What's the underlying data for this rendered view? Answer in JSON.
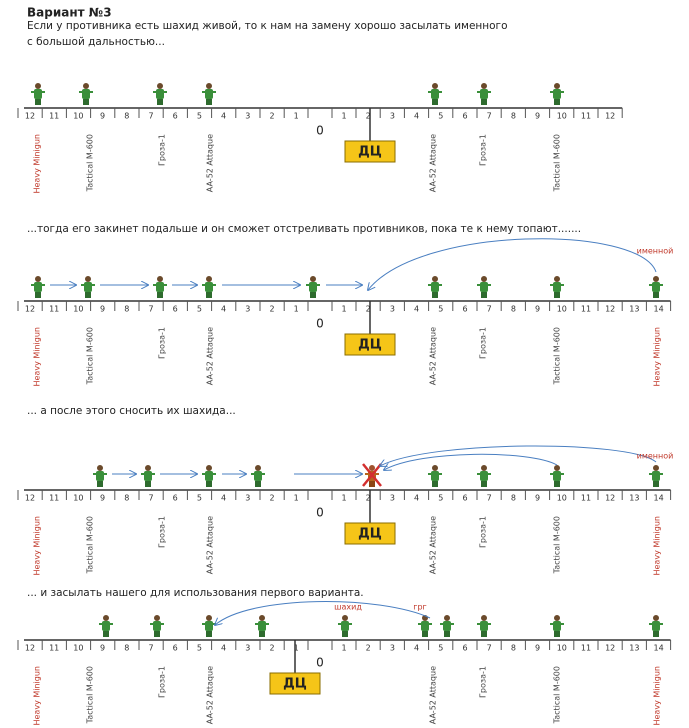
{
  "title": "Вариант №3",
  "intro": [
    "Если у противника есть шахид живой, то к нам на замену хорошо засылать именного",
    "с большой дальностью..."
  ],
  "panels": [
    {
      "scale_left": [
        12,
        11,
        10,
        9,
        8,
        7,
        6,
        5,
        4,
        3,
        2,
        1
      ],
      "scale_right": [
        1,
        2,
        3,
        4,
        5,
        6,
        7,
        8,
        9,
        10,
        11,
        12
      ],
      "zero": "0",
      "center": "ДЦ",
      "units": [
        "Heavy Minigun",
        "Tactical M-600",
        "Гроза-1",
        "AA-52 Attaque",
        "AA-52 Attaque",
        "Гроза-1",
        "Tactical M-600"
      ]
    },
    {
      "caption": "...тогда его закинет подальше и он сможет отстреливать противников, пока те к нему топают.......",
      "scale_left": [
        12,
        11,
        10,
        9,
        8,
        7,
        6,
        5,
        4,
        3,
        2,
        1
      ],
      "scale_right": [
        1,
        2,
        3,
        4,
        5,
        6,
        7,
        8,
        9,
        10,
        11,
        12,
        13,
        14
      ],
      "zero": "0",
      "center": "ДЦ",
      "units": [
        "Heavy Minigun",
        "Tactical M-600",
        "Гроза-1",
        "AA-52 Attaque",
        "AA-52 Attaque",
        "Гроза-1",
        "Tactical M-600",
        "Heavy Minigun"
      ],
      "notes": [
        "именной"
      ]
    },
    {
      "caption": "... а после этого сносить их шахида...",
      "scale_left": [
        12,
        11,
        10,
        9,
        8,
        7,
        6,
        5,
        4,
        3,
        2,
        1
      ],
      "scale_right": [
        1,
        2,
        3,
        4,
        5,
        6,
        7,
        8,
        9,
        10,
        11,
        12,
        13,
        14
      ],
      "zero": "0",
      "center": "ДЦ",
      "units": [
        "Heavy Minigun",
        "Tactical M-600",
        "Гроза-1",
        "AA-52 Attaque",
        "AA-52 Attaque",
        "Гроза-1",
        "Tactical M-600",
        "Heavy Minigun"
      ],
      "notes": [
        "именной"
      ]
    },
    {
      "caption": "... и засылать нашего для использования первого варианта.",
      "scale_left": [
        12,
        11,
        10,
        9,
        8,
        7,
        6,
        5,
        4,
        3,
        2,
        1
      ],
      "scale_right": [
        1,
        2,
        3,
        4,
        5,
        6,
        7,
        8,
        9,
        10,
        11,
        12,
        13,
        14
      ],
      "zero": "0",
      "center": "ДЦ",
      "units": [
        "Heavy Minigun",
        "Tactical M-600",
        "Гроза-1",
        "AA-52 Attaque",
        "AA-52 Attaque",
        "Гроза-1",
        "Tactical M-600",
        "Heavy Minigun"
      ],
      "notes": [
        "шахид",
        "грг"
      ]
    }
  ]
}
